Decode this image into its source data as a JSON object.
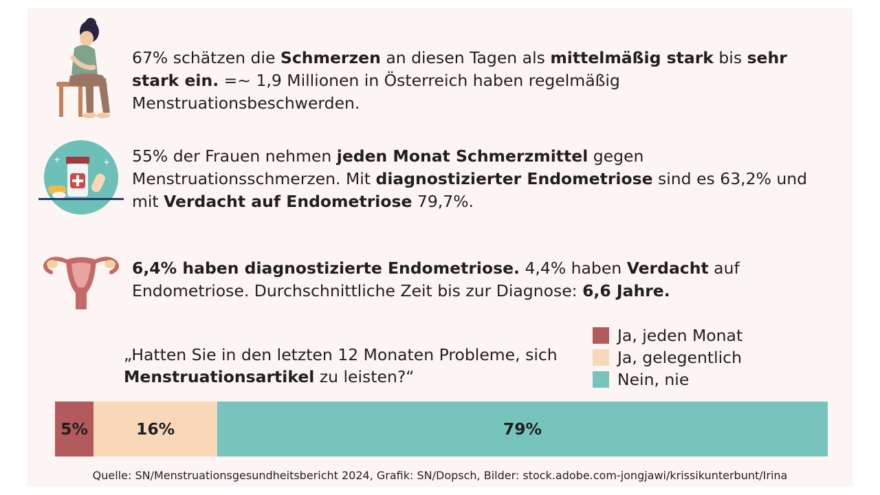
{
  "facts": [
    {
      "parts": [
        {
          "t": "67% schätzen die ",
          "b": false
        },
        {
          "t": "Schmerzen",
          "b": true
        },
        {
          "t": " an diesen Tagen als ",
          "b": false
        },
        {
          "t": "mittelmäßig stark",
          "b": true
        },
        {
          "t": " bis ",
          "b": false
        },
        {
          "t": "sehr stark ein.",
          "b": true
        },
        {
          "t": " =~ 1,9 Millionen in Österreich haben regelmäßig Menstruationsbeschwerden.",
          "b": false
        }
      ]
    },
    {
      "parts": [
        {
          "t": "55% der Frauen nehmen ",
          "b": false
        },
        {
          "t": "jeden Monat Schmerzmittel",
          "b": true
        },
        {
          "t": " gegen Menstruationsschmerzen. Mit ",
          "b": false
        },
        {
          "t": "diagnostizierter Endometriose",
          "b": true
        },
        {
          "t": " sind es 63,2% und mit ",
          "b": false
        },
        {
          "t": "Verdacht auf Endometriose",
          "b": true
        },
        {
          "t": " 79,7%.",
          "b": false
        }
      ]
    },
    {
      "parts": [
        {
          "t": "6,4% haben diagnostizierte Endometriose.",
          "b": true
        },
        {
          "t": " 4,4% haben ",
          "b": false
        },
        {
          "t": "Verdacht",
          "b": true
        },
        {
          "t": " auf Endometriose. Durchschnittliche Zeit bis zur Diagnose: ",
          "b": false
        },
        {
          "t": "6,6 Jahre.",
          "b": true
        }
      ]
    }
  ],
  "question": {
    "parts": [
      {
        "t": "„Hatten Sie in den letzten 12 Monaten Probleme, sich ",
        "b": false
      },
      {
        "t": "Menstruationsartikel",
        "b": true
      },
      {
        "t": " zu leisten?“",
        "b": false
      }
    ]
  },
  "chart_data": {
    "type": "bar",
    "orientation": "horizontal-stacked",
    "categories": [
      "Ja, jeden Monat",
      "Ja, gelegentlich",
      "Nein, nie"
    ],
    "values": [
      5,
      16,
      79
    ],
    "labels": [
      "5%",
      "16%",
      "79%"
    ],
    "colors": [
      "#b35a5c",
      "#f8d8b8",
      "#76c4bb"
    ],
    "unit": "%",
    "legend_position": "top-right"
  },
  "source": "Quelle: SN/Menstruationsgesundheitsbericht 2024, Grafik: SN/Dopsch, Bilder: stock.adobe.com-jongjawi/krissikunterbunt/Irina",
  "colors": {
    "background": "#fdf5f3",
    "text": "#1f1f1f",
    "accent_teal": "#76c4bb",
    "accent_red": "#b35a5c",
    "accent_peach": "#f8d8b8"
  },
  "icons": [
    "woman-with-cramps-icon",
    "painkillers-icon",
    "uterus-icon"
  ]
}
